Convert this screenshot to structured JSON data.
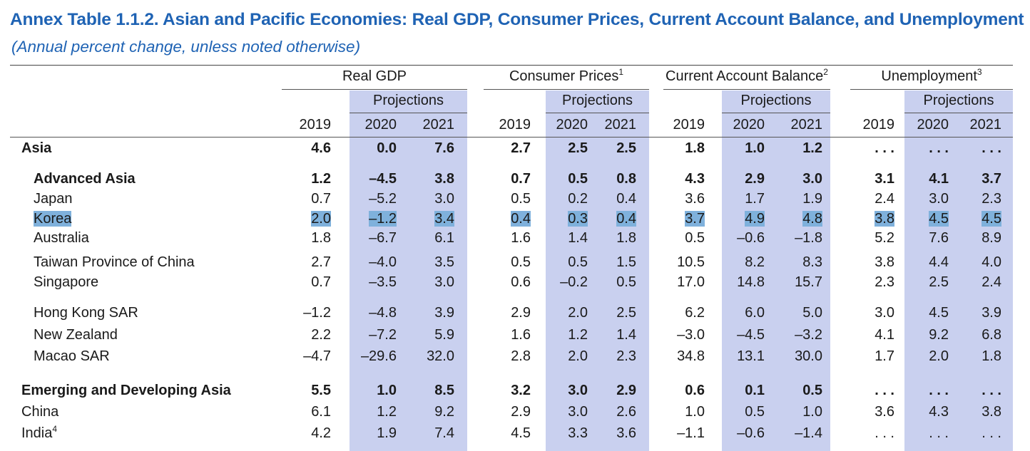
{
  "title": "Annex Table 1.1.2. Asian and Pacific Economies: Real GDP, Consumer Prices, Current Account Balance, and Unemployment",
  "subtitle": "(Annual percent change, unless noted otherwise)",
  "groups": [
    {
      "label": "Real GDP",
      "note": ""
    },
    {
      "label": "Consumer Prices",
      "note": "1"
    },
    {
      "label": "Current Account Balance",
      "note": "2"
    },
    {
      "label": "Unemployment",
      "note": "3"
    }
  ],
  "projections_label": "Projections",
  "years": [
    "2019",
    "2020",
    "2021"
  ],
  "highlight_color": "#7fb1dc",
  "band_color": "#c9d0ef",
  "title_color": "#1f63b4",
  "rows": [
    {
      "label": "Asia",
      "note": "",
      "bold": true,
      "indent": false,
      "highlight": false,
      "values": [
        "4.6",
        "0.0",
        "7.6",
        "2.7",
        "2.5",
        "2.5",
        "1.8",
        "1.0",
        "1.2",
        ". . .",
        ". . .",
        ". . ."
      ]
    },
    {
      "label": "Advanced Asia",
      "note": "",
      "bold": true,
      "indent": true,
      "highlight": false,
      "values": [
        "1.2",
        "–4.5",
        "3.8",
        "0.7",
        "0.5",
        "0.8",
        "4.3",
        "2.9",
        "3.0",
        "3.1",
        "4.1",
        "3.7"
      ]
    },
    {
      "label": "Japan",
      "note": "",
      "bold": false,
      "indent": true,
      "highlight": false,
      "values": [
        "0.7",
        "–5.2",
        "3.0",
        "0.5",
        "0.2",
        "0.4",
        "3.6",
        "1.7",
        "1.9",
        "2.4",
        "3.0",
        "2.3"
      ]
    },
    {
      "label": "Korea",
      "note": "",
      "bold": false,
      "indent": true,
      "highlight": true,
      "values": [
        "2.0",
        "–1.2",
        "3.4",
        "0.4",
        "0.3",
        "0.4",
        "3.7",
        "4.9",
        "4.8",
        "3.8",
        "4.5",
        "4.5"
      ]
    },
    {
      "label": "Australia",
      "note": "",
      "bold": false,
      "indent": true,
      "highlight": false,
      "values": [
        "1.8",
        "–6.7",
        "6.1",
        "1.6",
        "1.4",
        "1.8",
        "0.5",
        "–0.6",
        "–1.8",
        "5.2",
        "7.6",
        "8.9"
      ]
    },
    {
      "label": "Taiwan Province of China",
      "note": "",
      "bold": false,
      "indent": true,
      "highlight": false,
      "values": [
        "2.7",
        "–4.0",
        "3.5",
        "0.5",
        "0.5",
        "1.5",
        "10.5",
        "8.2",
        "8.3",
        "3.8",
        "4.4",
        "4.0"
      ]
    },
    {
      "label": "Singapore",
      "note": "",
      "bold": false,
      "indent": true,
      "highlight": false,
      "values": [
        "0.7",
        "–3.5",
        "3.0",
        "0.6",
        "–0.2",
        "0.5",
        "17.0",
        "14.8",
        "15.7",
        "2.3",
        "2.5",
        "2.4"
      ]
    },
    {
      "label": "Hong Kong SAR",
      "note": "",
      "bold": false,
      "indent": true,
      "highlight": false,
      "values": [
        "–1.2",
        "–4.8",
        "3.9",
        "2.9",
        "2.0",
        "2.5",
        "6.2",
        "6.0",
        "5.0",
        "3.0",
        "4.5",
        "3.9"
      ]
    },
    {
      "label": "New Zealand",
      "note": "",
      "bold": false,
      "indent": true,
      "highlight": false,
      "values": [
        "2.2",
        "–7.2",
        "5.9",
        "1.6",
        "1.2",
        "1.4",
        "–3.0",
        "–4.5",
        "–3.2",
        "4.1",
        "9.2",
        "6.8"
      ]
    },
    {
      "label": "Macao SAR",
      "note": "",
      "bold": false,
      "indent": true,
      "highlight": false,
      "values": [
        "–4.7",
        "–29.6",
        "32.0",
        "2.8",
        "2.0",
        "2.3",
        "34.8",
        "13.1",
        "30.0",
        "1.7",
        "2.0",
        "1.8"
      ]
    },
    {
      "label": "Emerging and Developing Asia",
      "note": "",
      "bold": true,
      "indent": false,
      "highlight": false,
      "values": [
        "5.5",
        "1.0",
        "8.5",
        "3.2",
        "3.0",
        "2.9",
        "0.6",
        "0.1",
        "0.5",
        ". . .",
        ". . .",
        ". . ."
      ]
    },
    {
      "label": "China",
      "note": "",
      "bold": false,
      "indent": false,
      "highlight": false,
      "values": [
        "6.1",
        "1.2",
        "9.2",
        "2.9",
        "3.0",
        "2.6",
        "1.0",
        "0.5",
        "1.0",
        "3.6",
        "4.3",
        "3.8"
      ]
    },
    {
      "label": "India",
      "note": "4",
      "bold": false,
      "indent": false,
      "highlight": false,
      "values": [
        "4.2",
        "1.9",
        "7.4",
        "4.5",
        "3.3",
        "3.6",
        "–1.1",
        "–0.6",
        "–1.4",
        ". . .",
        ". . .",
        ". . ."
      ]
    }
  ]
}
